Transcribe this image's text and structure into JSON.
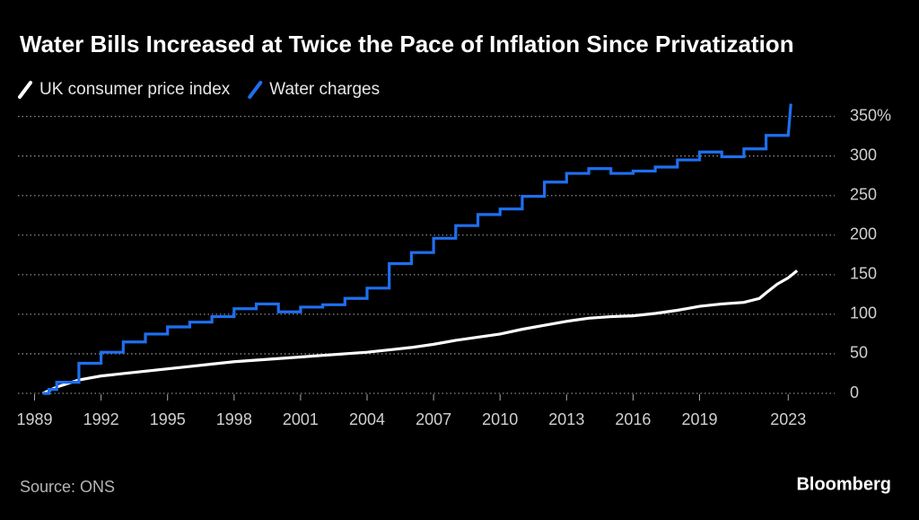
{
  "chart_data": {
    "type": "line",
    "title": "Water Bills Increased at Twice the Pace of Inflation Since Privatization",
    "source": "Source: ONS",
    "brand": "Bloomberg",
    "xlim": [
      1988.25,
      2024
    ],
    "xticks": [
      1989,
      1992,
      1995,
      1998,
      2001,
      2004,
      2007,
      2010,
      2013,
      2016,
      2019,
      2023
    ],
    "ylim": [
      0,
      370
    ],
    "yticks": [
      0,
      50,
      100,
      150,
      200,
      250,
      300,
      {
        "value": 350,
        "label": "350%"
      }
    ],
    "grid": true,
    "legend": "top-left",
    "series": [
      {
        "name": "UK consumer price index",
        "color": "#ffffff",
        "x": [
          1989.38,
          1990,
          1991,
          1992,
          1993,
          1994,
          1995,
          1996,
          1997,
          1998,
          1999,
          2000,
          2001,
          2002,
          2003,
          2004,
          2005,
          2006,
          2007,
          2008,
          2009,
          2010,
          2011,
          2012,
          2013,
          2014,
          2015,
          2016,
          2017,
          2018,
          2019,
          2020,
          2021,
          2021.7,
          2022,
          2022.5,
          2023,
          2023.4
        ],
        "values": [
          0,
          8,
          17,
          22,
          25,
          28,
          31,
          34,
          37,
          40,
          42,
          44,
          46,
          48,
          50,
          52,
          55,
          58,
          62,
          67,
          71,
          75,
          81,
          86,
          91,
          95,
          97,
          98,
          101,
          105,
          110,
          113,
          115,
          120,
          127,
          138,
          146,
          155
        ]
      },
      {
        "name": "Water charges",
        "color": "#1f6ff0",
        "x": [
          1989.38,
          1989.65,
          1989.65,
          1990,
          1990,
          1991,
          1991,
          1992,
          1992,
          1993,
          1993,
          1994,
          1994,
          1995,
          1995,
          1996,
          1996,
          1997,
          1997,
          1998,
          1998,
          1999,
          1999,
          2000,
          2000,
          2001,
          2001,
          2002,
          2002,
          2003,
          2003,
          2004,
          2004,
          2005,
          2005,
          2006,
          2006,
          2007,
          2007,
          2008,
          2008,
          2009,
          2009,
          2010,
          2010,
          2011,
          2011,
          2012,
          2012,
          2013,
          2013,
          2014,
          2014,
          2015,
          2015,
          2016,
          2016,
          2017,
          2017,
          2018,
          2018,
          2019,
          2019,
          2020,
          2020,
          2021,
          2021,
          2022,
          2022,
          2023,
          2023.12
        ],
        "values": [
          0,
          0,
          5,
          5,
          14,
          14,
          38,
          38,
          52,
          52,
          65,
          65,
          75,
          75,
          84,
          84,
          90,
          90,
          97,
          97,
          107,
          107,
          113,
          113,
          103,
          103,
          109,
          109,
          112,
          112,
          120,
          120,
          133,
          133,
          164,
          164,
          178,
          178,
          196,
          196,
          212,
          212,
          226,
          226,
          233,
          233,
          249,
          249,
          267,
          267,
          278,
          278,
          284,
          284,
          278,
          278,
          281,
          281,
          286,
          286,
          295,
          295,
          305,
          305,
          299,
          299,
          309,
          309,
          326,
          326,
          366
        ]
      }
    ]
  }
}
